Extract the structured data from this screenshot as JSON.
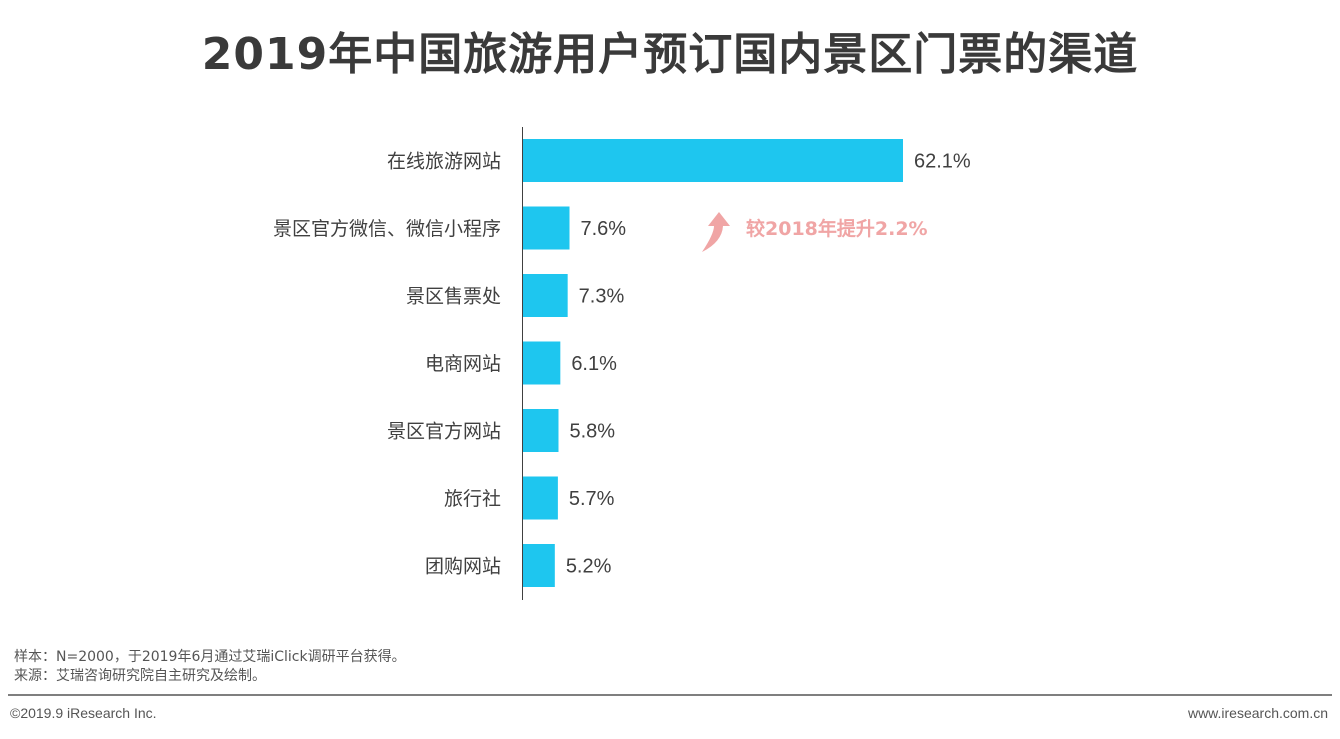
{
  "title": "2019年中国旅游用户预订国内景区门票的渠道",
  "chart_data": {
    "type": "bar",
    "orientation": "horizontal",
    "categories": [
      "在线旅游网站",
      "景区官方微信、微信小程序",
      "景区售票处",
      "电商网站",
      "景区官方网站",
      "旅行社",
      "团购网站"
    ],
    "values": [
      62.1,
      7.6,
      7.3,
      6.1,
      5.8,
      5.7,
      5.2
    ],
    "value_labels": [
      "62.1%",
      "7.6%",
      "7.3%",
      "6.1%",
      "5.8%",
      "5.7%",
      "5.2%"
    ],
    "bar_color": "#1ec6ef",
    "annotation": {
      "text": "较2018年提升2.2%",
      "category": "景区官方微信、微信小程序",
      "color": "#f0a5a5",
      "icon": "up-arrow-icon"
    }
  },
  "notes": {
    "sample": "样本：N=2000，于2019年6月通过艾瑞iClick调研平台获得。",
    "source": "来源：艾瑞咨询研究院自主研究及绘制。"
  },
  "footer": {
    "copyright": "©2019.9 iResearch Inc.",
    "website": "www.iresearch.com.cn"
  }
}
